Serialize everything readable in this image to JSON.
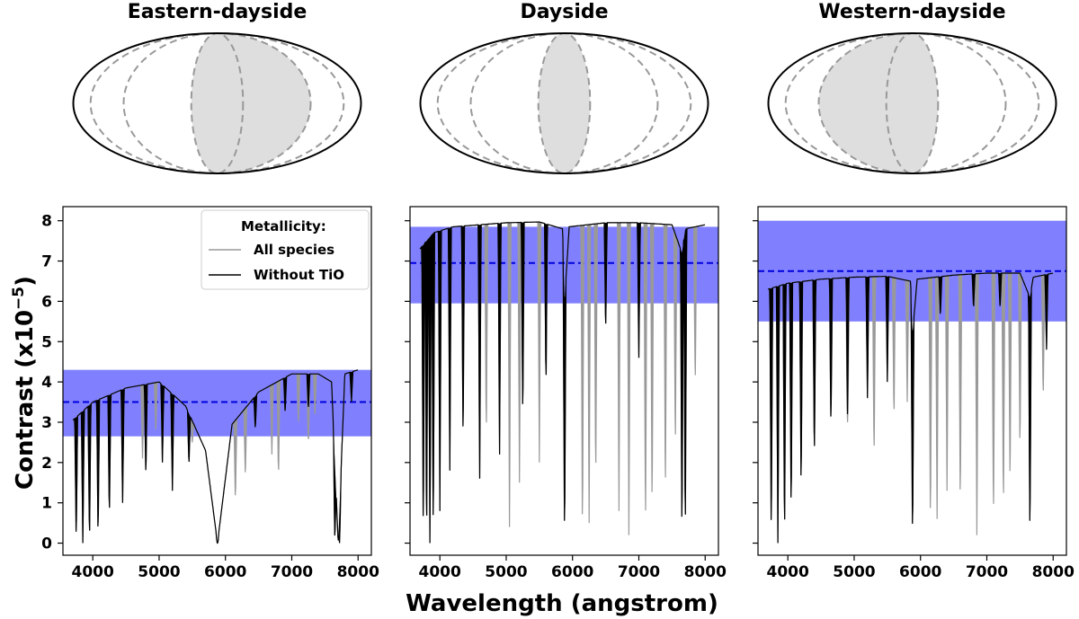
{
  "chart_data": {
    "type": "line",
    "xlabel": "Wavelength (angstrom)",
    "ylabel": "Contrast (x10",
    "ylabel_exponent": "−5",
    "ylabel_close": ")",
    "xlim": [
      3550,
      8200
    ],
    "ylim": [
      -0.3,
      8.35
    ],
    "xticks": [
      4000,
      5000,
      6000,
      7000,
      8000
    ],
    "yticks": [
      0,
      1,
      2,
      3,
      4,
      5,
      6,
      7,
      8
    ],
    "legend": {
      "title": "Metallicity:",
      "entries": [
        {
          "label": "All species",
          "color": "#999999"
        },
        {
          "label": "Without TiO",
          "color": "#000000"
        }
      ],
      "placement": "top-right of first panel"
    },
    "colors": {
      "all_species": "#999999",
      "without_tio": "#000000",
      "band_fill": "#8080ff",
      "dashed_line": "#0000dd",
      "shaded_region": "#dedede",
      "globe_outline": "#000000",
      "meridian": "#999999"
    },
    "panels": [
      {
        "title": "Eastern-dayside",
        "globe_shade": "east",
        "observed": {
          "value": 3.5,
          "band": [
            2.65,
            4.3
          ]
        },
        "envelope": [
          [
            3700,
            3.05
          ],
          [
            4000,
            3.5
          ],
          [
            4500,
            3.85
          ],
          [
            5000,
            4.0
          ],
          [
            5400,
            3.4
          ],
          [
            5700,
            2.3
          ],
          [
            5880,
            0.0
          ],
          [
            6100,
            2.95
          ],
          [
            6500,
            3.75
          ],
          [
            7000,
            4.2
          ],
          [
            7400,
            4.2
          ],
          [
            7600,
            4.0
          ],
          [
            7700,
            0.0
          ],
          [
            7800,
            4.2
          ],
          [
            8000,
            4.3
          ]
        ],
        "black_dips": [
          [
            3750,
            0.0
          ],
          [
            3850,
            0.0
          ],
          [
            3950,
            0.0
          ],
          [
            4080,
            0.1
          ],
          [
            4250,
            0.6
          ],
          [
            4450,
            1.0
          ],
          [
            4800,
            1.6
          ],
          [
            5050,
            2.0
          ],
          [
            5200,
            1.3
          ],
          [
            5450,
            1.9
          ],
          [
            5880,
            0.0
          ],
          [
            6450,
            2.8
          ],
          [
            6900,
            3.2
          ],
          [
            7250,
            3.3
          ],
          [
            7650,
            0.0
          ],
          [
            7720,
            0.0
          ],
          [
            7900,
            3.5
          ]
        ],
        "grey_dips": [
          [
            4750,
            2.1
          ],
          [
            4950,
            2.7
          ],
          [
            5500,
            2.5
          ],
          [
            6150,
            1.0
          ],
          [
            6300,
            1.6
          ],
          [
            6700,
            2.2
          ],
          [
            6800,
            1.6
          ],
          [
            7100,
            2.9
          ],
          [
            7250,
            2.5
          ],
          [
            7350,
            3.1
          ]
        ]
      },
      {
        "title": "Dayside",
        "globe_shade": "center",
        "observed": {
          "value": 6.95,
          "band": [
            5.95,
            7.85
          ]
        },
        "envelope": [
          [
            3700,
            7.3
          ],
          [
            3900,
            7.7
          ],
          [
            4200,
            7.85
          ],
          [
            5000,
            7.95
          ],
          [
            5500,
            7.97
          ],
          [
            5850,
            7.8
          ],
          [
            5880,
            6.0
          ],
          [
            5950,
            7.85
          ],
          [
            6500,
            7.95
          ],
          [
            7000,
            7.95
          ],
          [
            7500,
            7.9
          ],
          [
            7650,
            7.2
          ],
          [
            7700,
            7.8
          ],
          [
            8000,
            7.9
          ]
        ],
        "black_dips": [
          [
            3750,
            0.0
          ],
          [
            3800,
            0.0
          ],
          [
            3850,
            0.0
          ],
          [
            3900,
            0.0
          ],
          [
            4000,
            0.8
          ],
          [
            4150,
            1.8
          ],
          [
            4350,
            2.4
          ],
          [
            4600,
            1.6
          ],
          [
            4900,
            2.2
          ],
          [
            5250,
            3.0
          ],
          [
            5600,
            3.8
          ],
          [
            5880,
            0.0
          ],
          [
            6500,
            5.2
          ],
          [
            7000,
            4.6
          ],
          [
            7650,
            0.0
          ],
          [
            7700,
            0.0
          ]
        ],
        "grey_dips": [
          [
            4700,
            2.5
          ],
          [
            5050,
            0.4
          ],
          [
            5200,
            1.5
          ],
          [
            5500,
            2.0
          ],
          [
            6150,
            0.0
          ],
          [
            6250,
            0.5
          ],
          [
            6350,
            1.4
          ],
          [
            6700,
            0.8
          ],
          [
            6850,
            0.2
          ],
          [
            7100,
            0.1
          ],
          [
            7200,
            0.6
          ],
          [
            7400,
            1.0
          ],
          [
            7550,
            2.2
          ],
          [
            7850,
            3.8
          ]
        ]
      },
      {
        "title": "Western-dayside",
        "globe_shade": "west",
        "observed": {
          "value": 6.75,
          "band": [
            5.5,
            8.0
          ]
        },
        "envelope": [
          [
            3700,
            6.3
          ],
          [
            4000,
            6.45
          ],
          [
            4500,
            6.55
          ],
          [
            5000,
            6.6
          ],
          [
            5500,
            6.62
          ],
          [
            5850,
            6.5
          ],
          [
            5880,
            5.2
          ],
          [
            5950,
            6.55
          ],
          [
            6500,
            6.65
          ],
          [
            7000,
            6.7
          ],
          [
            7500,
            6.7
          ],
          [
            7650,
            6.1
          ],
          [
            7700,
            6.6
          ],
          [
            8000,
            6.7
          ]
        ],
        "black_dips": [
          [
            3750,
            0.0
          ],
          [
            3850,
            0.0
          ],
          [
            3950,
            0.0
          ],
          [
            4050,
            0.6
          ],
          [
            4200,
            1.2
          ],
          [
            4400,
            2.0
          ],
          [
            4650,
            2.8
          ],
          [
            4900,
            3.2
          ],
          [
            5200,
            3.6
          ],
          [
            5500,
            4.0
          ],
          [
            5880,
            0.0
          ],
          [
            6300,
            5.6
          ],
          [
            6800,
            5.8
          ],
          [
            7200,
            5.8
          ],
          [
            7650,
            0.0
          ],
          [
            7900,
            4.8
          ]
        ],
        "grey_dips": [
          [
            4900,
            3.0
          ],
          [
            5300,
            2.0
          ],
          [
            5600,
            3.0
          ],
          [
            5800,
            3.5
          ],
          [
            6150,
            0.3
          ],
          [
            6250,
            0.6
          ],
          [
            6400,
            1.3
          ],
          [
            6600,
            0.8
          ],
          [
            6850,
            0.2
          ],
          [
            7100,
            0.4
          ],
          [
            7250,
            0.7
          ],
          [
            7350,
            1.3
          ],
          [
            7500,
            2.2
          ],
          [
            7850,
            3.5
          ]
        ]
      }
    ]
  }
}
